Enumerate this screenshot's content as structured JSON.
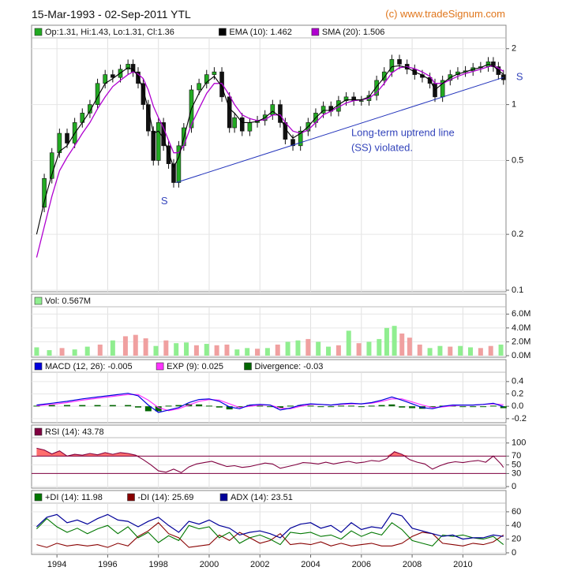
{
  "header": {
    "date_range": "15-Mar-1993 - 02-Sep-2011 YTL",
    "copyright": "(c) www.tradeSignum.com"
  },
  "colors": {
    "candle_up": "#22aa22",
    "candle_down": "#111111",
    "ema": "#000000",
    "sma": "#b000d0",
    "trendline": "#2233bb",
    "annotation": "#3344bb",
    "vol_up": "#90ee90",
    "vol_down": "#f0a0a0",
    "macd": "#0000dd",
    "exp": "#ff33ff",
    "divergence": "#006600",
    "rsi": "#800040",
    "rsi_fill": "#ff5555",
    "plus_di": "#007700",
    "minus_di": "#880000",
    "adx": "#000099"
  },
  "chart_data": [
    {
      "type": "candlestick",
      "panel": "price",
      "scale": "log",
      "legend": [
        {
          "label": "Op:1.31, Hi:1.43, Lo:1.31, Cl:1.36",
          "color_key": "candle_up"
        },
        {
          "label": "EMA (10): 1.462",
          "color_key": "ema"
        },
        {
          "label": "SMA (20): 1.506",
          "color_key": "sma"
        }
      ],
      "ylim": [
        0.1,
        2.2
      ],
      "yticks": [
        {
          "v": 2,
          "label": "2"
        },
        {
          "v": 1,
          "label": "1"
        },
        {
          "v": 0.5,
          "label": "0.5"
        },
        {
          "v": 0.2,
          "label": "0.2"
        },
        {
          "v": 0.1,
          "label": "0.1"
        }
      ],
      "x": [
        1993.2,
        1993.5,
        1993.8,
        1994.1,
        1994.4,
        1994.7,
        1995.0,
        1995.3,
        1995.6,
        1995.9,
        1996.2,
        1996.5,
        1996.8,
        1997.0,
        1997.2,
        1997.4,
        1997.6,
        1997.8,
        1998.0,
        1998.2,
        1998.4,
        1998.6,
        1998.8,
        1999.0,
        1999.3,
        1999.6,
        1999.9,
        2000.2,
        2000.5,
        2000.8,
        2001.0,
        2001.3,
        2001.6,
        2001.9,
        2002.2,
        2002.5,
        2002.8,
        2003.0,
        2003.3,
        2003.6,
        2003.9,
        2004.2,
        2004.5,
        2004.8,
        2005.1,
        2005.4,
        2005.7,
        2006.0,
        2006.3,
        2006.6,
        2006.9,
        2007.2,
        2007.5,
        2007.8,
        2008.1,
        2008.4,
        2008.7,
        2008.9,
        2009.2,
        2009.5,
        2009.8,
        2010.1,
        2010.4,
        2010.7,
        2011.0,
        2011.2,
        2011.4,
        2011.6
      ],
      "close": [
        0.28,
        0.4,
        0.55,
        0.7,
        0.62,
        0.8,
        0.9,
        1.0,
        1.3,
        1.45,
        1.4,
        1.55,
        1.65,
        1.5,
        1.3,
        1.0,
        0.72,
        0.5,
        0.8,
        0.6,
        0.48,
        0.38,
        0.6,
        0.75,
        1.2,
        1.3,
        1.45,
        1.5,
        1.1,
        0.75,
        0.85,
        0.72,
        0.8,
        0.82,
        0.88,
        1.0,
        0.8,
        0.65,
        0.6,
        0.72,
        0.8,
        0.9,
        0.98,
        0.92,
        1.05,
        1.1,
        1.05,
        1.05,
        1.12,
        1.35,
        1.5,
        1.75,
        1.65,
        1.55,
        1.45,
        1.4,
        1.3,
        1.1,
        1.35,
        1.45,
        1.5,
        1.52,
        1.58,
        1.6,
        1.7,
        1.6,
        1.45,
        1.36
      ],
      "ema": [
        0.2,
        0.3,
        0.42,
        0.56,
        0.6,
        0.7,
        0.8,
        0.92,
        1.1,
        1.3,
        1.38,
        1.48,
        1.58,
        1.55,
        1.42,
        1.2,
        0.95,
        0.7,
        0.72,
        0.66,
        0.55,
        0.46,
        0.52,
        0.66,
        0.95,
        1.15,
        1.32,
        1.42,
        1.25,
        0.95,
        0.9,
        0.8,
        0.8,
        0.81,
        0.85,
        0.92,
        0.86,
        0.74,
        0.66,
        0.7,
        0.76,
        0.85,
        0.93,
        0.93,
        1.0,
        1.06,
        1.06,
        1.06,
        1.1,
        1.25,
        1.4,
        1.6,
        1.62,
        1.58,
        1.5,
        1.44,
        1.36,
        1.2,
        1.3,
        1.4,
        1.46,
        1.5,
        1.55,
        1.58,
        1.65,
        1.62,
        1.52,
        1.46
      ],
      "sma": [
        0.15,
        0.22,
        0.32,
        0.44,
        0.52,
        0.6,
        0.7,
        0.8,
        0.95,
        1.1,
        1.25,
        1.35,
        1.45,
        1.5,
        1.46,
        1.38,
        1.2,
        0.98,
        0.85,
        0.75,
        0.64,
        0.55,
        0.55,
        0.6,
        0.78,
        0.95,
        1.15,
        1.3,
        1.3,
        1.12,
        1.0,
        0.88,
        0.84,
        0.82,
        0.83,
        0.88,
        0.88,
        0.8,
        0.72,
        0.7,
        0.73,
        0.8,
        0.88,
        0.92,
        0.97,
        1.02,
        1.05,
        1.06,
        1.08,
        1.16,
        1.3,
        1.48,
        1.58,
        1.6,
        1.56,
        1.5,
        1.42,
        1.3,
        1.3,
        1.36,
        1.42,
        1.47,
        1.51,
        1.55,
        1.6,
        1.62,
        1.57,
        1.51
      ],
      "trendline": {
        "x": [
          1998.7,
          2011.6
        ],
        "y": [
          0.38,
          1.4
        ]
      },
      "annotations": [
        {
          "text": "Long-term uptrend line",
          "x": 2005.6,
          "y": 0.7
        },
        {
          "text": "(SS) violated.",
          "x": 2005.6,
          "y": 0.58
        },
        {
          "text": "S",
          "x": 1998.1,
          "y": 0.3
        },
        {
          "text": "S",
          "x": 2012.1,
          "y": 1.4
        }
      ]
    },
    {
      "type": "bar",
      "panel": "volume",
      "legend": [
        {
          "label": "Vol: 0.567M",
          "color_key": "vol_up"
        }
      ],
      "ylim": [
        0,
        6.6
      ],
      "yticks": [
        {
          "v": 0,
          "label": "0.0M"
        },
        {
          "v": 2,
          "label": "2.0M"
        },
        {
          "v": 4,
          "label": "4.0M"
        },
        {
          "v": 6,
          "label": "6.0M"
        }
      ],
      "x": [
        1993.2,
        1993.7,
        1994.2,
        1994.7,
        1995.2,
        1995.7,
        1996.2,
        1996.7,
        1997.1,
        1997.5,
        1997.9,
        1998.3,
        1998.7,
        1999.1,
        1999.5,
        1999.9,
        2000.3,
        2000.7,
        2001.1,
        2001.5,
        2001.9,
        2002.3,
        2002.7,
        2003.1,
        2003.5,
        2003.9,
        2004.3,
        2004.7,
        2005.1,
        2005.5,
        2005.9,
        2006.3,
        2006.7,
        2007.0,
        2007.3,
        2007.6,
        2007.9,
        2008.3,
        2008.7,
        2009.1,
        2009.5,
        2009.9,
        2010.3,
        2010.7,
        2011.1,
        2011.5
      ],
      "values": [
        1.2,
        0.8,
        1.1,
        0.9,
        1.3,
        1.6,
        2.2,
        2.8,
        3.0,
        2.5,
        1.4,
        2.2,
        1.8,
        1.9,
        1.5,
        1.7,
        1.5,
        1.6,
        0.9,
        1.1,
        1.0,
        1.1,
        1.6,
        2.0,
        2.2,
        2.4,
        2.0,
        1.3,
        1.5,
        3.6,
        1.8,
        2.0,
        2.4,
        4.0,
        4.3,
        3.2,
        2.6,
        1.6,
        1.1,
        1.4,
        1.3,
        1.4,
        1.2,
        1.1,
        1.4,
        1.6
      ],
      "up": [
        true,
        true,
        false,
        true,
        true,
        false,
        true,
        false,
        false,
        false,
        true,
        false,
        true,
        true,
        false,
        true,
        false,
        false,
        true,
        true,
        false,
        true,
        false,
        true,
        true,
        false,
        true,
        true,
        false,
        true,
        false,
        true,
        true,
        true,
        true,
        false,
        false,
        false,
        true,
        true,
        false,
        true,
        true,
        false,
        false,
        true
      ]
    },
    {
      "type": "line",
      "panel": "macd",
      "legend": [
        {
          "label": "MACD (12, 26): -0.005",
          "color_key": "macd"
        },
        {
          "label": "EXP (9): 0.025",
          "color_key": "exp"
        },
        {
          "label": "Divergence: -0.03",
          "color_key": "divergence"
        }
      ],
      "ylim": [
        -0.24,
        0.5
      ],
      "yticks": [
        {
          "v": 0.4,
          "label": "0.4"
        },
        {
          "v": 0.2,
          "label": "0.2"
        },
        {
          "v": 0.0,
          "label": "0.0"
        },
        {
          "v": -0.2,
          "label": "-0.2"
        }
      ],
      "x": [
        1993.2,
        1993.8,
        1994.4,
        1995.0,
        1995.6,
        1996.2,
        1996.8,
        1997.2,
        1997.6,
        1998.0,
        1998.4,
        1998.8,
        1999.2,
        1999.6,
        2000.0,
        2000.4,
        2000.8,
        2001.2,
        2001.6,
        2002.0,
        2002.4,
        2002.8,
        2003.2,
        2003.6,
        2004.0,
        2004.4,
        2004.8,
        2005.2,
        2005.6,
        2006.0,
        2006.4,
        2006.8,
        2007.2,
        2007.6,
        2008.0,
        2008.4,
        2008.8,
        2009.2,
        2009.6,
        2010.0,
        2010.4,
        2010.8,
        2011.2,
        2011.6
      ],
      "series": [
        {
          "name": "MACD (12, 26)",
          "values": [
            0.02,
            0.05,
            0.08,
            0.12,
            0.15,
            0.18,
            0.21,
            0.17,
            0.02,
            -0.1,
            -0.06,
            -0.02,
            0.06,
            0.11,
            0.12,
            0.08,
            -0.01,
            -0.04,
            0.02,
            0.03,
            0.02,
            -0.06,
            -0.03,
            0.02,
            0.04,
            0.03,
            0.02,
            0.04,
            0.05,
            0.04,
            0.06,
            0.1,
            0.15,
            0.1,
            0.04,
            -0.02,
            -0.04,
            0.0,
            0.02,
            0.02,
            0.02,
            0.03,
            0.05,
            -0.005
          ]
        },
        {
          "name": "EXP (9)",
          "values": [
            0.01,
            0.03,
            0.06,
            0.1,
            0.13,
            0.16,
            0.19,
            0.19,
            0.1,
            -0.02,
            -0.07,
            -0.04,
            0.02,
            0.08,
            0.11,
            0.1,
            0.04,
            -0.02,
            0.0,
            0.02,
            0.02,
            -0.03,
            -0.04,
            0.0,
            0.03,
            0.03,
            0.02,
            0.03,
            0.04,
            0.04,
            0.05,
            0.08,
            0.12,
            0.12,
            0.07,
            0.02,
            -0.02,
            -0.01,
            0.01,
            0.02,
            0.02,
            0.03,
            0.04,
            0.025
          ]
        },
        {
          "name": "Divergence",
          "values": [
            0.01,
            0.02,
            0.02,
            0.02,
            0.02,
            0.02,
            0.02,
            -0.02,
            -0.08,
            -0.08,
            0.01,
            0.02,
            0.04,
            0.03,
            0.01,
            -0.02,
            -0.05,
            -0.02,
            0.02,
            0.01,
            0.0,
            -0.03,
            0.01,
            0.02,
            0.01,
            0.0,
            0.0,
            0.01,
            0.01,
            0.0,
            0.01,
            0.02,
            0.03,
            -0.02,
            -0.03,
            -0.04,
            -0.02,
            0.01,
            0.01,
            0.0,
            0.0,
            0.0,
            0.01,
            -0.03
          ]
        }
      ]
    },
    {
      "type": "line",
      "panel": "rsi",
      "legend": [
        {
          "label": "RSI (14): 43.78",
          "color_key": "rsi"
        }
      ],
      "ylim": [
        0,
        105
      ],
      "yticks": [
        {
          "v": 100,
          "label": "100"
        },
        {
          "v": 70,
          "label": "70"
        },
        {
          "v": 50,
          "label": "50"
        },
        {
          "v": 30,
          "label": "30"
        },
        {
          "v": 0,
          "label": "0"
        }
      ],
      "levels": [
        70,
        30
      ],
      "x": [
        1993.2,
        1993.5,
        1993.8,
        1994.1,
        1994.4,
        1994.7,
        1995.0,
        1995.3,
        1995.6,
        1995.9,
        1996.2,
        1996.5,
        1996.8,
        1997.1,
        1997.4,
        1997.7,
        1998.0,
        1998.3,
        1998.6,
        1998.9,
        1999.2,
        1999.5,
        1999.8,
        2000.1,
        2000.4,
        2000.7,
        2001.0,
        2001.3,
        2001.6,
        2001.9,
        2002.2,
        2002.5,
        2002.8,
        2003.1,
        2003.4,
        2003.7,
        2004.0,
        2004.3,
        2004.6,
        2004.9,
        2005.2,
        2005.5,
        2005.8,
        2006.1,
        2006.4,
        2006.7,
        2007.0,
        2007.3,
        2007.6,
        2007.9,
        2008.2,
        2008.5,
        2008.8,
        2009.1,
        2009.4,
        2009.7,
        2010.0,
        2010.3,
        2010.6,
        2010.9,
        2011.2,
        2011.5,
        2011.6
      ],
      "values": [
        88,
        84,
        75,
        82,
        70,
        74,
        72,
        76,
        73,
        78,
        74,
        78,
        76,
        72,
        62,
        50,
        36,
        33,
        40,
        32,
        45,
        52,
        55,
        58,
        52,
        46,
        48,
        44,
        46,
        50,
        54,
        52,
        42,
        46,
        50,
        55,
        54,
        52,
        56,
        52,
        55,
        58,
        54,
        56,
        60,
        58,
        64,
        80,
        74,
        62,
        56,
        52,
        40,
        48,
        54,
        57,
        55,
        58,
        60,
        56,
        70,
        52,
        44
      ]
    },
    {
      "type": "line",
      "panel": "dmi",
      "legend": [
        {
          "label": "+DI (14): 11.98",
          "color_key": "plus_di"
        },
        {
          "label": "-DI (14): 25.69",
          "color_key": "minus_di"
        },
        {
          "label": "ADX (14): 23.51",
          "color_key": "adx"
        }
      ],
      "ylim": [
        0,
        68
      ],
      "yticks": [
        {
          "v": 60,
          "label": "60"
        },
        {
          "v": 40,
          "label": "40"
        },
        {
          "v": 20,
          "label": "20"
        },
        {
          "v": 0,
          "label": "0"
        }
      ],
      "x": [
        1993.2,
        1993.6,
        1994.0,
        1994.4,
        1994.8,
        1995.2,
        1995.6,
        1996.0,
        1996.4,
        1996.8,
        1997.2,
        1997.6,
        1998.0,
        1998.4,
        1998.8,
        1999.2,
        1999.6,
        2000.0,
        2000.4,
        2000.8,
        2001.2,
        2001.6,
        2002.0,
        2002.4,
        2002.8,
        2003.2,
        2003.6,
        2004.0,
        2004.4,
        2004.8,
        2005.2,
        2005.6,
        2006.0,
        2006.4,
        2006.8,
        2007.2,
        2007.6,
        2008.0,
        2008.4,
        2008.8,
        2009.2,
        2009.6,
        2010.0,
        2010.4,
        2010.8,
        2011.2,
        2011.6
      ],
      "series": [
        {
          "name": "+DI (14)",
          "values": [
            35,
            50,
            38,
            30,
            36,
            28,
            35,
            40,
            28,
            38,
            22,
            30,
            15,
            25,
            18,
            40,
            35,
            38,
            22,
            30,
            14,
            22,
            26,
            20,
            12,
            30,
            28,
            30,
            24,
            26,
            20,
            32,
            24,
            30,
            26,
            44,
            34,
            18,
            14,
            10,
            26,
            24,
            26,
            22,
            20,
            24,
            12
          ]
        },
        {
          "name": "-DI (14)",
          "values": [
            12,
            8,
            14,
            10,
            12,
            10,
            12,
            8,
            14,
            10,
            24,
            32,
            44,
            28,
            22,
            8,
            10,
            12,
            26,
            18,
            30,
            22,
            14,
            18,
            28,
            12,
            14,
            12,
            16,
            10,
            14,
            10,
            12,
            14,
            10,
            10,
            14,
            24,
            30,
            28,
            14,
            12,
            10,
            14,
            12,
            16,
            26
          ]
        },
        {
          "name": "ADX (14)",
          "values": [
            38,
            52,
            56,
            44,
            48,
            42,
            50,
            56,
            48,
            46,
            38,
            46,
            52,
            40,
            30,
            46,
            42,
            48,
            40,
            36,
            26,
            30,
            32,
            28,
            22,
            36,
            42,
            44,
            36,
            40,
            30,
            44,
            34,
            38,
            36,
            58,
            54,
            36,
            32,
            28,
            24,
            26,
            20,
            22,
            22,
            26,
            24
          ]
        }
      ]
    }
  ],
  "x_axis": {
    "ticks": [
      {
        "v": 1994,
        "label": "1994"
      },
      {
        "v": 1996,
        "label": "1996"
      },
      {
        "v": 1998,
        "label": "1998"
      },
      {
        "v": 2000,
        "label": "2000"
      },
      {
        "v": 2002,
        "label": "2002"
      },
      {
        "v": 2004,
        "label": "2004"
      },
      {
        "v": 2006,
        "label": "2006"
      },
      {
        "v": 2008,
        "label": "2008"
      },
      {
        "v": 2010,
        "label": "2010"
      }
    ],
    "range": [
      1993.0,
      2011.7
    ]
  }
}
